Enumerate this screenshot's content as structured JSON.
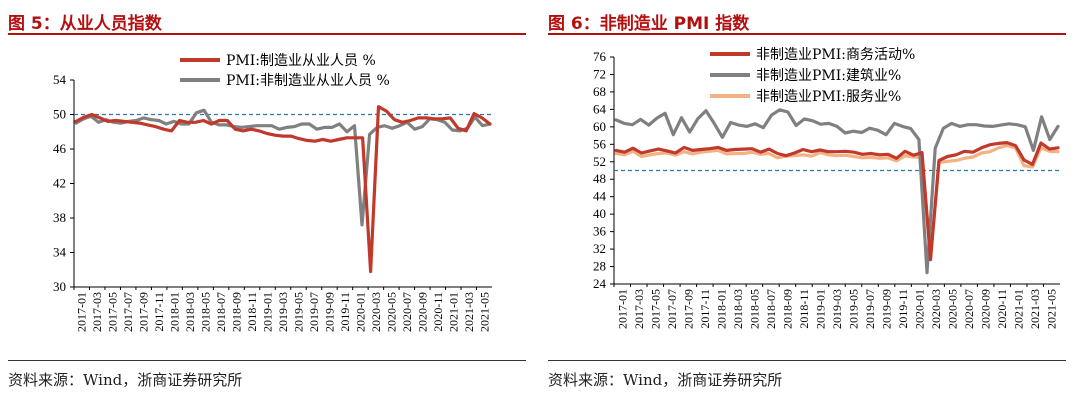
{
  "charts": {
    "left": {
      "title": "图 5：从业人员指数",
      "source": "资料来源：Wind，浙商证券研究所"
    },
    "right": {
      "title": "图 6：非制造业 PMI 指数",
      "source": "资料来源：Wind，浙商证券研究所"
    }
  },
  "colors": {
    "red": "#c0392b",
    "gray": "#808080",
    "orange": "#f4b183",
    "ref_line": "#2e75b6",
    "title": "#b30f0f"
  },
  "chart_data": [
    {
      "type": "line",
      "title": "图 5：从业人员指数",
      "xlabel": "",
      "ylabel": "",
      "ylim": [
        30,
        54
      ],
      "yticks": [
        30,
        34,
        38,
        42,
        46,
        50,
        54
      ],
      "reference_line": 50,
      "legend_position": "top-center",
      "x_tick_labels": [
        "2017-01",
        "2017-03",
        "2017-05",
        "2017-07",
        "2017-09",
        "2017-11",
        "2018-01",
        "2018-03",
        "2018-05",
        "2018-07",
        "2018-09",
        "2018-11",
        "2019-01",
        "2019-03",
        "2019-05",
        "2019-07",
        "2019-09",
        "2019-11",
        "2020-01",
        "2020-03",
        "2020-05",
        "2020-07",
        "2020-09",
        "2020-11",
        "2021-01",
        "2021-03",
        "2021-05"
      ],
      "series": [
        {
          "name": "PMI:制造业从业人员 %",
          "color": "#c0392b",
          "values": [
            49.2,
            49.7,
            50.0,
            49.6,
            49.2,
            49.3,
            49.2,
            49.1,
            49.0,
            48.8,
            48.6,
            48.3,
            48.1,
            49.3,
            49.1,
            49.1,
            49.3,
            48.9,
            49.3,
            49.3,
            48.3,
            48.1,
            48.3,
            48.1,
            47.8,
            47.6,
            47.5,
            47.5,
            47.2,
            47.0,
            46.9,
            47.1,
            46.9,
            47.1,
            47.3,
            47.3,
            47.3,
            31.8,
            50.9,
            50.4,
            49.4,
            49.1,
            49.3,
            49.6,
            49.6,
            49.5,
            49.5,
            49.6,
            48.4,
            48.1,
            50.1,
            49.6,
            48.9
          ]
        },
        {
          "name": "PMI:非制造业从业人员 %",
          "color": "#808080",
          "values": [
            49.0,
            49.5,
            49.8,
            49.1,
            49.4,
            49.1,
            49.0,
            49.2,
            49.3,
            49.6,
            49.4,
            49.3,
            48.9,
            49.2,
            48.9,
            48.9,
            50.2,
            50.5,
            49.1,
            48.8,
            48.8,
            48.6,
            48.5,
            48.6,
            48.7,
            48.7,
            48.7,
            48.3,
            48.5,
            48.6,
            48.9,
            48.9,
            48.3,
            48.5,
            48.5,
            48.9,
            48.0,
            48.7,
            37.2,
            47.7,
            48.5,
            48.7,
            48.4,
            48.7,
            49.1,
            48.3,
            48.6,
            49.5,
            49.4,
            49.1,
            48.2,
            48.1,
            48.4,
            49.7,
            48.7,
            48.9
          ]
        }
      ]
    },
    {
      "type": "line",
      "title": "图 6：非制造业 PMI 指数",
      "xlabel": "",
      "ylabel": "",
      "ylim": [
        24,
        76
      ],
      "yticks": [
        24,
        28,
        32,
        36,
        40,
        44,
        48,
        52,
        56,
        60,
        64,
        68,
        72,
        76
      ],
      "reference_line": 50,
      "legend_position": "top-center",
      "x_tick_labels": [
        "2017-01",
        "2017-03",
        "2017-05",
        "2017-07",
        "2017-09",
        "2017-11",
        "2018-01",
        "2018-03",
        "2018-05",
        "2018-07",
        "2018-09",
        "2018-11",
        "2019-01",
        "2019-03",
        "2019-05",
        "2019-07",
        "2019-09",
        "2019-11",
        "2020-01",
        "2020-03",
        "2020-05",
        "2020-07",
        "2020-09",
        "2020-11",
        "2021-01",
        "2021-03",
        "2021-05"
      ],
      "series": [
        {
          "name": "非制造业PMI:商务活动%",
          "color": "#c0392b",
          "values": [
            54.6,
            54.2,
            55.1,
            54.0,
            54.5,
            54.9,
            54.5,
            54.0,
            55.3,
            54.6,
            54.8,
            55.0,
            55.3,
            54.6,
            54.8,
            54.9,
            55.0,
            54.2,
            54.9,
            53.9,
            53.4,
            54.0,
            54.8,
            54.3,
            54.7,
            54.3,
            54.3,
            54.4,
            54.2,
            53.7,
            53.9,
            53.6,
            53.7,
            52.8,
            54.4,
            53.5,
            54.1,
            29.6,
            52.3,
            53.2,
            53.6,
            54.4,
            54.2,
            55.2,
            55.9,
            56.2,
            56.4,
            55.7,
            52.4,
            51.4,
            56.3,
            54.9,
            55.2
          ]
        },
        {
          "name": "非制造业PMI:建筑业%",
          "color": "#808080",
          "values": [
            61.6,
            60.8,
            60.5,
            61.7,
            60.4,
            62.0,
            63.1,
            58.2,
            62.1,
            58.8,
            61.9,
            63.7,
            60.8,
            57.6,
            61.0,
            60.4,
            60.1,
            60.7,
            59.8,
            62.7,
            63.9,
            63.4,
            60.3,
            61.8,
            61.4,
            60.6,
            60.8,
            60.1,
            58.6,
            59.0,
            58.7,
            59.7,
            59.2,
            58.2,
            60.8,
            60.1,
            59.6,
            57.1,
            26.6,
            55.1,
            59.7,
            60.8,
            60.1,
            60.5,
            60.5,
            60.2,
            60.1,
            60.4,
            60.7,
            60.5,
            60.0,
            54.6,
            62.3,
            57.1,
            60.1
          ]
        },
        {
          "name": "非制造业PMI:服务业%",
          "color": "#f4b183",
          "values": [
            53.9,
            53.6,
            54.4,
            53.2,
            53.6,
            53.9,
            54.0,
            53.5,
            54.3,
            53.8,
            54.2,
            54.4,
            54.6,
            53.8,
            53.9,
            53.9,
            54.2,
            53.7,
            53.9,
            52.9,
            53.3,
            53.4,
            53.6,
            53.3,
            54.1,
            53.6,
            53.4,
            53.5,
            53.2,
            52.9,
            53.0,
            52.8,
            52.9,
            52.2,
            53.4,
            53.1,
            53.0,
            30.1,
            51.8,
            52.1,
            52.3,
            52.8,
            53.1,
            54.0,
            54.3,
            55.2,
            55.7,
            55.2,
            51.1,
            50.8,
            55.2,
            54.4,
            54.3
          ]
        }
      ]
    }
  ]
}
